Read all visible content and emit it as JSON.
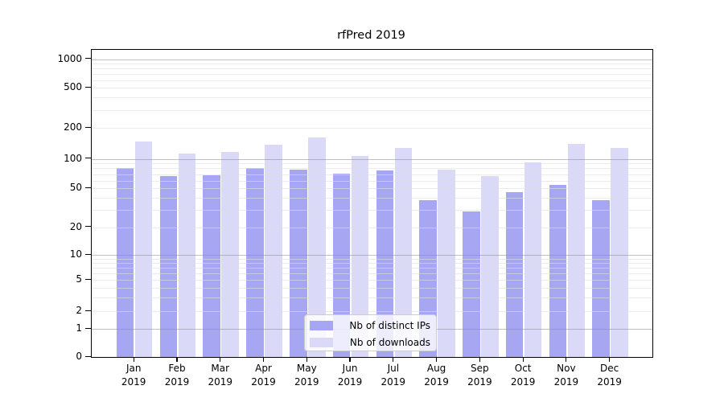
{
  "chart_data": {
    "type": "bar",
    "title": "rfPred 2019",
    "categories": [
      "Jan",
      "Feb",
      "Mar",
      "Apr",
      "May",
      "Jun",
      "Jul",
      "Aug",
      "Sep",
      "Oct",
      "Nov",
      "Dec"
    ],
    "category_year": "2019",
    "series": [
      {
        "name": "Nb of distinct IPs",
        "color": "#a6a6f3",
        "values": [
          80,
          67,
          68,
          80,
          78,
          71,
          77,
          38,
          29,
          46,
          54,
          38
        ]
      },
      {
        "name": "Nb of downloads",
        "color": "#dadaf8",
        "values": [
          148,
          113,
          117,
          138,
          162,
          107,
          128,
          78,
          67,
          92,
          140,
          129
        ]
      }
    ],
    "yticks": [
      0,
      1,
      2,
      5,
      10,
      20,
      50,
      100,
      200,
      500,
      1000
    ],
    "yscale": "symlog",
    "ylim": [
      0,
      1250
    ],
    "grid": true,
    "legend_position": "lower center",
    "legend_labels": [
      "Nb of distinct IPs",
      "Nb of downloads"
    ]
  },
  "colors": {
    "bar_distinct_ips": "#a6a6f3",
    "bar_downloads": "#dadaf8",
    "major_grid": "#c8c8c8",
    "minor_grid": "#ededed",
    "axis": "#000000",
    "legend_border": "#cccccc"
  }
}
